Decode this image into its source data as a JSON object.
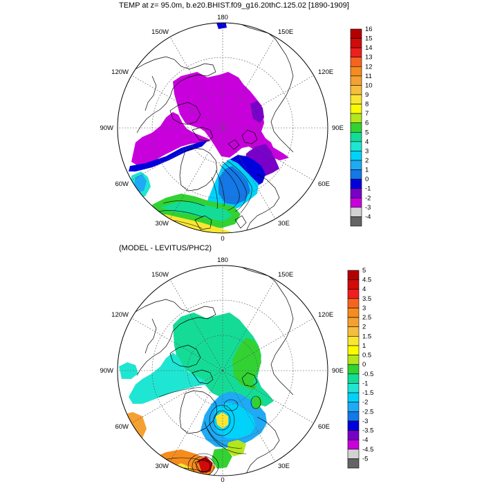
{
  "top_panel": {
    "title": "TEMP at z=  95.0m, b.e20.BHIST.f09_g16.20thC.125.02 [1890-1909]",
    "meridian_labels": [
      "180",
      "150E",
      "120E",
      "90E",
      "60E",
      "30E",
      "0",
      "30W",
      "60W",
      "90W",
      "120W",
      "150W"
    ],
    "colorbar": {
      "labels": [
        "16",
        "15",
        "14",
        "13",
        "12",
        "11",
        "10",
        "9",
        "8",
        "7",
        "6",
        "5",
        "4",
        "3",
        "2",
        "1",
        "0",
        "-1",
        "-2",
        "-3",
        "-4"
      ],
      "colors": [
        "#b40000",
        "#d20a0a",
        "#f01e1e",
        "#f5641e",
        "#f58c1e",
        "#f5a032",
        "#f5be3c",
        "#fae632",
        "#fafa00",
        "#b4e61e",
        "#32d232",
        "#14dc96",
        "#1ee6d2",
        "#00d2fa",
        "#1eaaf5",
        "#1478e6",
        "#0000dc",
        "#7800c8",
        "#c800dc",
        "#d2d2d2",
        "#646464"
      ]
    }
  },
  "bottom_panel": {
    "title": "(MODEL - LEVITUS/PHC2)",
    "meridian_labels": [
      "180",
      "150E",
      "120E",
      "90E",
      "60E",
      "30E",
      "0",
      "30W",
      "60W",
      "90W",
      "120W",
      "150W"
    ],
    "colorbar": {
      "labels": [
        "5",
        "4.5",
        "4",
        "3.5",
        "3",
        "2.5",
        "2",
        "1.5",
        "1",
        "0.5",
        "0",
        "-0.5",
        "-1",
        "-1.5",
        "-2",
        "-2.5",
        "-3",
        "-3.5",
        "-4",
        "-4.5",
        "-5"
      ],
      "colors": [
        "#b40000",
        "#d20a0a",
        "#f01e1e",
        "#f5641e",
        "#f58c1e",
        "#f5a032",
        "#f5be3c",
        "#fae632",
        "#fafa00",
        "#b4e61e",
        "#32d232",
        "#14dc96",
        "#1ee6d2",
        "#00d2fa",
        "#1eaaf5",
        "#1478e6",
        "#0000dc",
        "#7800c8",
        "#c800dc",
        "#d2d2d2",
        "#646464"
      ]
    }
  }
}
